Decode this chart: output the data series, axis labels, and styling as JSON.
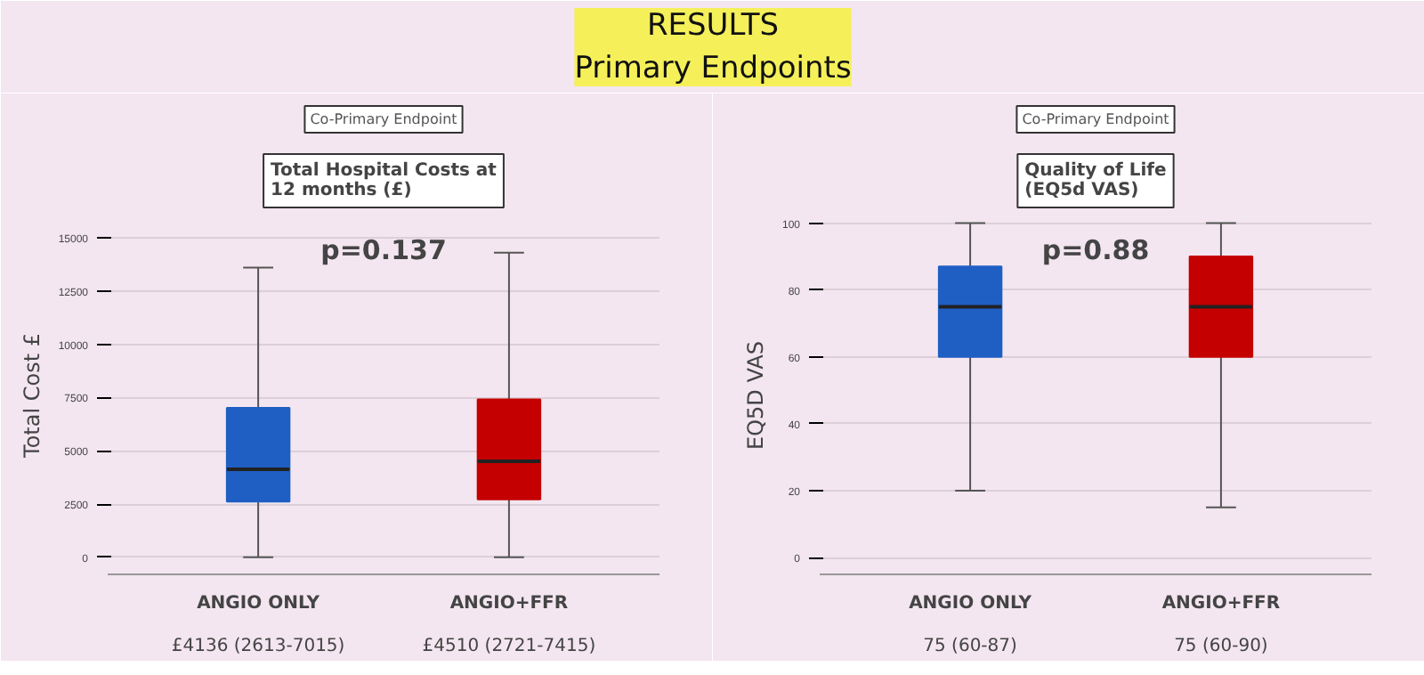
{
  "chart_data": [
    {
      "type": "box",
      "subtitle": "Co-Primary Endpoint",
      "title": "Total Hospital Costs at\n12 months (£)",
      "ylabel": "Total Cost £",
      "categories": [
        "ANGIO ONLY",
        "ANGIO+FFR"
      ],
      "colors": [
        "#1f5fc4",
        "#c40000"
      ],
      "boxes": [
        {
          "low": 0,
          "q1": 2613,
          "median": 4136,
          "q3": 7015,
          "high": 13600
        },
        {
          "low": 0,
          "q1": 2721,
          "median": 4510,
          "q3": 7415,
          "high": 14300
        }
      ],
      "ylim": [
        -800,
        16000
      ],
      "yticks": [
        0,
        2500,
        5000,
        7500,
        10000,
        12500,
        15000
      ],
      "grid": "y",
      "annotations": [
        "RESULTS\nPrimary Endpoints",
        "p=0.137",
        "£4136 (2613-7015)",
        "£4510 (2721-7415)"
      ]
    },
    {
      "type": "box",
      "subtitle": "Co-Primary Endpoint",
      "title": "Quality of Life\n(EQ5d VAS)",
      "ylabel": "EQ5D VAS",
      "categories": [
        "ANGIO ONLY",
        "ANGIO+FFR"
      ],
      "colors": [
        "#1f5fc4",
        "#c40000"
      ],
      "boxes": [
        {
          "low": 20,
          "q1": 60,
          "median": 75,
          "q3": 87,
          "high": 100
        },
        {
          "low": 15,
          "q1": 60,
          "median": 75,
          "q3": 90,
          "high": 100
        }
      ],
      "ylim": [
        -5,
        102
      ],
      "yticks": [
        0,
        20,
        40,
        60,
        80,
        100
      ],
      "grid": "y",
      "annotations": [
        "p=0.88",
        "75 (60-87)",
        "75 (60-90)"
      ]
    }
  ]
}
